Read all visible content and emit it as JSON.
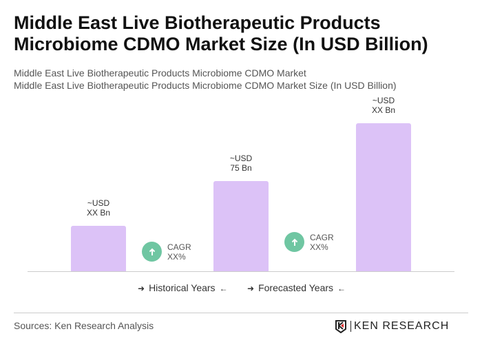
{
  "title": "Middle East Live Biotherapeutic Products Microbiome CDMO Market Size (In USD Billion)",
  "subtitle1": "Middle East Live Biotherapeutic Products Microbiome CDMO Market",
  "subtitle2": "Middle East Live Biotherapeutic Products Microbiome CDMO Market Size (In USD Billion)",
  "chart_data": {
    "type": "bar",
    "values": [
      37.5,
      75,
      123
    ],
    "data_labels": [
      [
        "~USD",
        "XX Bn"
      ],
      [
        "~USD",
        "75 Bn"
      ],
      [
        "~USD",
        "XX Bn"
      ]
    ],
    "bar_color": "#dcc2f7",
    "annotations": [
      {
        "l1": "CAGR",
        "l2": "XX%"
      },
      {
        "l1": "CAGR",
        "l2": "XX%"
      }
    ],
    "annotation_color": "#6fc6a2",
    "legend": [
      "Historical Years",
      "Forecasted Years"
    ],
    "grid": false
  },
  "source": "Sources: Ken Research Analysis",
  "logo": "KEN RESEARCH"
}
